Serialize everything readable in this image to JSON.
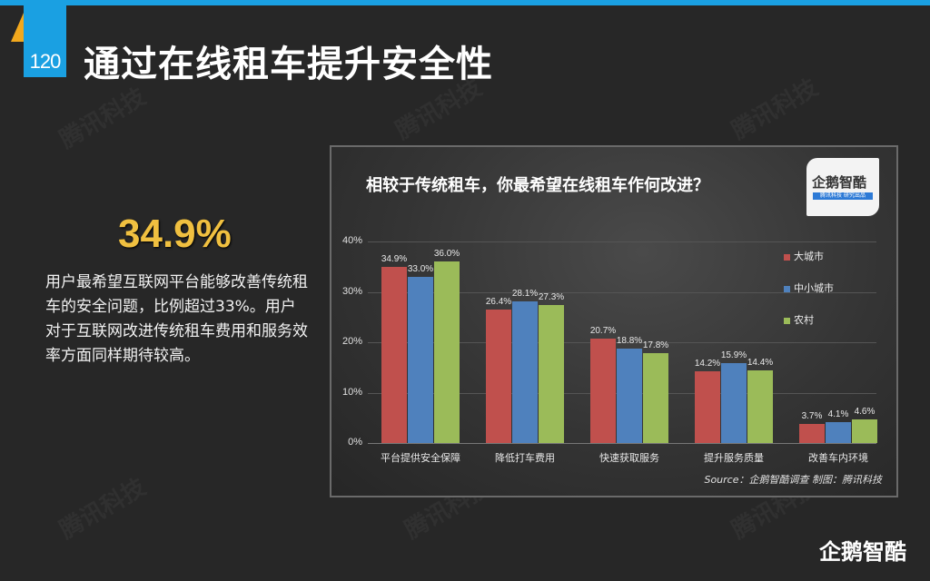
{
  "header": {
    "page_number": "120",
    "title": "通过在线租车提升安全性",
    "accent_color": "#1aa0e2",
    "triangle_color": "#f2a81d"
  },
  "highlight": {
    "value": "34.9%",
    "description": "用户最希望互联网平台能够改善传统租车的安全问题，比例超过33%。用户对于互联网改进传统租车费用和服务效率方面同样期待较高。"
  },
  "watermark": "腾讯科技",
  "chart_card": {
    "logo_name": "企鹅智酷",
    "logo_sub": "腾讯科技 研究出品",
    "source": "Source：企鹅智酷调查  制图：腾讯科技"
  },
  "footer": {
    "brand": "企鹅智酷"
  },
  "chart_data": {
    "type": "bar",
    "title": "相较于传统租车，你最希望在线租车作何改进？",
    "xlabel": "",
    "ylabel": "",
    "ylim": [
      0,
      40
    ],
    "yticks": [
      "0%",
      "10%",
      "20%",
      "30%",
      "40%"
    ],
    "grid": true,
    "legend_position": "right",
    "categories": [
      "平台提供安全保障",
      "降低打车费用",
      "快速获取服务",
      "提升服务质量",
      "改善车内环境"
    ],
    "series": [
      {
        "name": "大城市",
        "color": "#c0504d",
        "values": [
          34.9,
          26.4,
          20.7,
          14.2,
          3.7
        ],
        "labels": [
          "34.9%",
          "26.4%",
          "20.7%",
          "14.2%",
          "3.7%"
        ]
      },
      {
        "name": "中小城市",
        "color": "#4f81bd",
        "values": [
          33.0,
          28.1,
          18.8,
          15.9,
          4.1
        ],
        "labels": [
          "33.0%",
          "28.1%",
          "18.8%",
          "15.9%",
          "4.1%"
        ]
      },
      {
        "name": "农村",
        "color": "#9bbb59",
        "values": [
          36.0,
          27.3,
          17.8,
          14.4,
          4.6
        ],
        "labels": [
          "36.0%",
          "27.3%",
          "17.8%",
          "14.4%",
          "4.6%"
        ]
      }
    ]
  }
}
